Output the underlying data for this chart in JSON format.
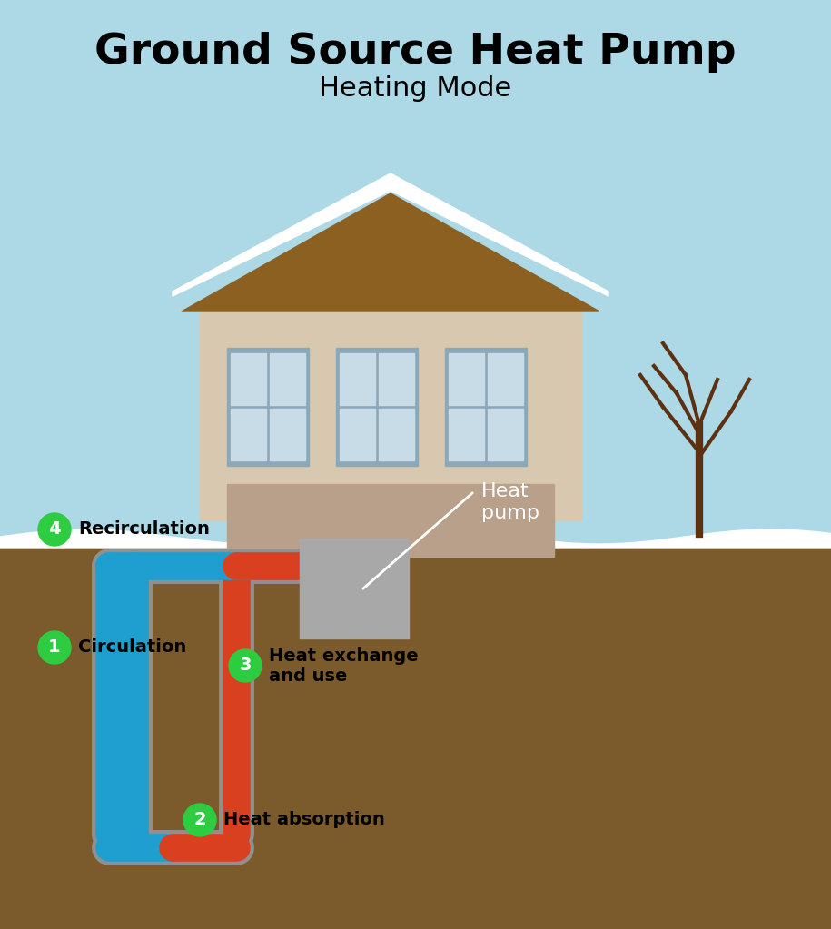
{
  "title": "Ground Source Heat Pump",
  "subtitle": "Heating Mode",
  "bg_sky": "#ADD8E6",
  "bg_ground": "#7B5B2C",
  "bg_snow": "#FFFFFF",
  "house_wall_upper": "#D9C8B0",
  "house_wall_lower": "#B8A08A",
  "house_roof": "#8B6020",
  "house_snow": "#FFFFFF",
  "window_frame": "#8BA8BB",
  "window_glass": "#C8DCE8",
  "heat_pump_color": "#A8A8A8",
  "pipe_blue": "#1E9FD0",
  "pipe_red": "#D94020",
  "pipe_gray": "#909090",
  "label_bg": "#2ECC40",
  "label_text": "#FFFFFF",
  "labels": [
    "1",
    "2",
    "3",
    "4"
  ],
  "label_texts": [
    "Circulation",
    "Heat absorption",
    "Heat exchange\nand use",
    "Recirculation"
  ],
  "heat_pump_label": "Heat\npump",
  "arrow_color": "#FFFFFF",
  "tree_color": "#5C3010"
}
